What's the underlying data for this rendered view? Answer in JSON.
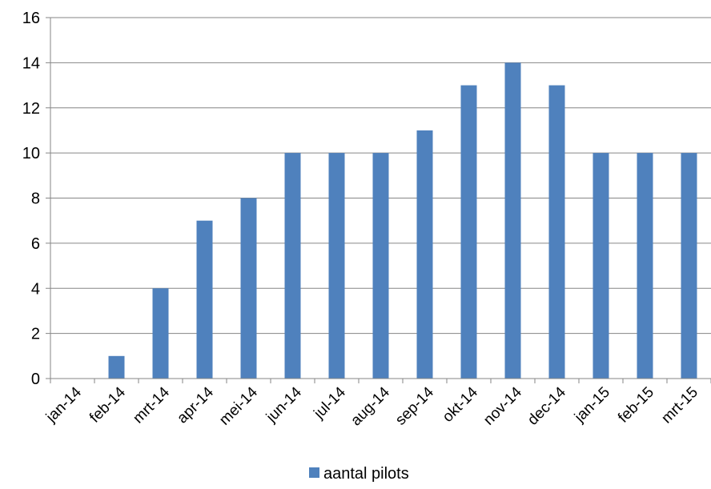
{
  "chart_data": {
    "type": "bar",
    "categories": [
      "jan-14",
      "feb-14",
      "mrt-14",
      "apr-14",
      "mei-14",
      "jun-14",
      "jul-14",
      "aug-14",
      "sep-14",
      "okt-14",
      "nov-14",
      "dec-14",
      "jan-15",
      "feb-15",
      "mrt-15"
    ],
    "series": [
      {
        "name": "aantal pilots",
        "values": [
          0,
          1,
          4,
          7,
          8,
          10,
          10,
          10,
          11,
          13,
          14,
          13,
          10,
          10,
          10
        ],
        "color": "#4F81BD"
      }
    ],
    "ylim": [
      0,
      16
    ],
    "yticks": [
      0,
      2,
      4,
      6,
      8,
      10,
      12,
      14,
      16
    ],
    "grid": true,
    "legend_position": "bottom"
  }
}
